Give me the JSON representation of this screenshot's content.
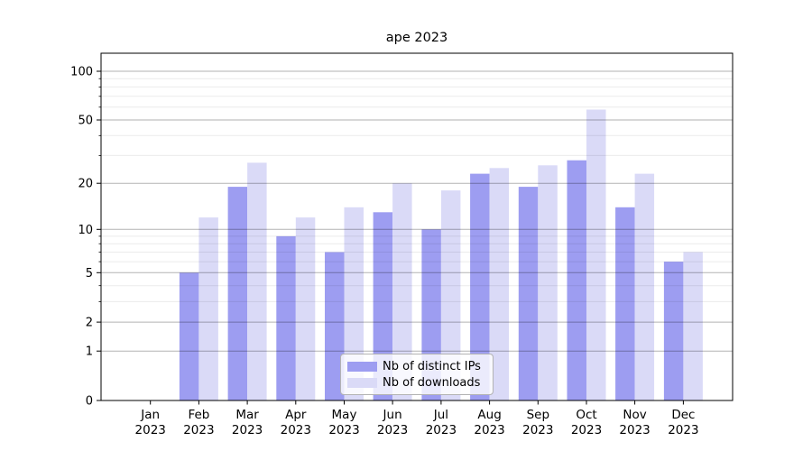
{
  "chart_data": {
    "type": "bar",
    "title": "ape 2023",
    "scale": "log1p",
    "year": "2023",
    "categories": [
      "Jan",
      "Feb",
      "Mar",
      "Apr",
      "May",
      "Jun",
      "Jul",
      "Aug",
      "Sep",
      "Oct",
      "Nov",
      "Dec"
    ],
    "series": [
      {
        "name": "Nb of distinct IPs",
        "color": "#9d9df1",
        "values": [
          0,
          5,
          19,
          9,
          7,
          13,
          10,
          23,
          19,
          28,
          14,
          6
        ]
      },
      {
        "name": "Nb of downloads",
        "color": "#dadaf7",
        "values": [
          0,
          12,
          27,
          12,
          14,
          20,
          18,
          25,
          26,
          58,
          23,
          7
        ]
      }
    ],
    "yticks_major": [
      0,
      1,
      2,
      5,
      10,
      20,
      50,
      100
    ],
    "yticks_minor": [
      3,
      4,
      6,
      7,
      8,
      9,
      30,
      40,
      60,
      70,
      80,
      90
    ],
    "ylim": [
      0,
      129
    ],
    "xlabel": "",
    "ylabel": "",
    "grid": true,
    "legend_position": "lower center"
  }
}
